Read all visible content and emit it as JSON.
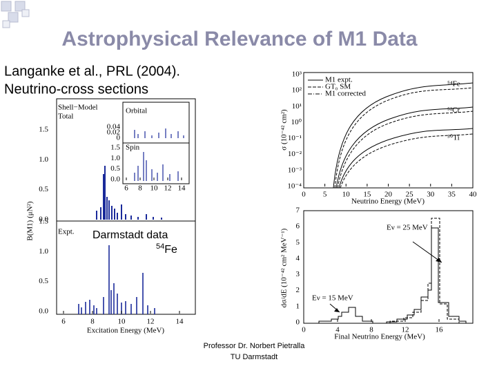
{
  "title": "Astrophysical Relevance of M1 Data",
  "intro": [
    "Langanke et al., PRL (2004).",
    "Neutrino-cross sections"
  ],
  "annotation": {
    "text": "Darmstadt data",
    "isotope_mass": "54",
    "isotope": "Fe"
  },
  "left_figure": {
    "y_label": "B(M1) (μN²)",
    "x_label": "Excitation Energy (MeV)",
    "panel_labels": [
      "Shell−Model",
      "Total",
      "Expt."
    ],
    "x_ticks": [
      "6",
      "8",
      "10",
      "12",
      "14"
    ],
    "y_ticks": [
      "0.0",
      "0.5",
      "1.0",
      "1.5"
    ],
    "inset": {
      "labels": [
        "Orbital",
        "Spin"
      ],
      "orbital_ticks": [
        "0.04",
        "0.02",
        "0"
      ],
      "spin_ticks": [
        "1.5",
        "1.0",
        "0.5",
        "0.0"
      ],
      "x_ticks": [
        "6",
        "8",
        "10",
        "12",
        "14"
      ]
    }
  },
  "top_right_figure": {
    "y_label": "σ (10⁻⁴² cm²)",
    "x_label": "Neutrino Energy (MeV)",
    "x_ticks": [
      "0",
      "5",
      "10",
      "15",
      "20",
      "25",
      "30",
      "35",
      "40"
    ],
    "y_ticks": [
      "10³",
      "10²",
      "10¹",
      "10⁰",
      "10⁻¹",
      "10⁻²",
      "10⁻³",
      "10⁻⁴"
    ],
    "legend": [
      "M1 expt.",
      "GT₀ SM",
      "M1 corrected"
    ],
    "curve_labels": [
      "⁵⁴Fe",
      "⁵²Cr",
      "⁵⁰Ti"
    ]
  },
  "bottom_right_figure": {
    "y_label": "dσ/dE (10⁻⁴² cm² MeV⁻¹)",
    "x_label": "Final Neutrino Energy (MeV)",
    "x_ticks": [
      "0",
      "4",
      "8",
      "12",
      "16"
    ],
    "y_ticks": [
      "0",
      "1",
      "2",
      "3",
      "4",
      "5",
      "6",
      "7"
    ],
    "annotations": [
      "Eν = 25 MeV",
      "Eν = 15 MeV"
    ]
  },
  "footer": [
    "Professor Dr. Norbert Pietralla",
    "TU Darmstadt"
  ]
}
